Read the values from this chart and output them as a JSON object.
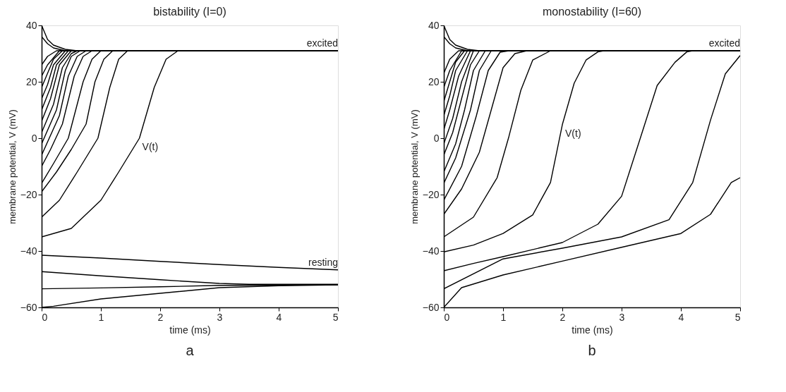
{
  "chart_data": [
    {
      "type": "line",
      "title": "bistability (I=0)",
      "xlabel": "time (ms)",
      "ylabel": "membrane potential, V (mV)",
      "xlim": [
        0,
        5
      ],
      "ylim": [
        -60,
        40
      ],
      "xticks": [
        0,
        1,
        2,
        3,
        4,
        5
      ],
      "yticks": [
        -60,
        -40,
        -20,
        0,
        20,
        40
      ],
      "grid": false,
      "line_style": "solid",
      "annotations": [
        {
          "text": "excited",
          "x": 5,
          "y": 31
        },
        {
          "text": "resting",
          "x": 5,
          "y": -46.7
        },
        {
          "text": "V(t)",
          "x": 1.65,
          "y": 0
        },
        "a"
      ],
      "series": [
        {
          "color": "#000000",
          "x": [
            0,
            0.1,
            0.2,
            0.4,
            0.6,
            5
          ],
          "values": [
            40,
            35,
            33,
            31.5,
            31,
            31
          ]
        },
        {
          "color": "#000000",
          "x": [
            0,
            0.1,
            0.2,
            0.4,
            5
          ],
          "values": [
            36,
            33.5,
            32,
            31,
            31
          ]
        },
        {
          "color": "#000000",
          "x": [
            0,
            0.1,
            0.25,
            5
          ],
          "values": [
            26,
            29,
            31,
            31
          ]
        },
        {
          "color": "#000000",
          "x": [
            0,
            0.1,
            0.3,
            5
          ],
          "values": [
            22,
            26,
            31,
            31
          ]
        },
        {
          "color": "#000000",
          "x": [
            0,
            0.1,
            0.2,
            0.35,
            5
          ],
          "values": [
            18,
            23,
            28,
            31,
            31
          ]
        },
        {
          "color": "#000000",
          "x": [
            0,
            0.1,
            0.2,
            0.4,
            5
          ],
          "values": [
            14,
            19,
            26,
            31,
            31
          ]
        },
        {
          "color": "#000000",
          "x": [
            0,
            0.15,
            0.25,
            0.45,
            5
          ],
          "values": [
            10,
            18,
            26,
            31,
            31
          ]
        },
        {
          "color": "#000000",
          "x": [
            0,
            0.15,
            0.3,
            0.5,
            5
          ],
          "values": [
            6,
            14,
            26,
            31,
            31
          ]
        },
        {
          "color": "#000000",
          "x": [
            0,
            0.2,
            0.35,
            0.5,
            0.6,
            5
          ],
          "values": [
            2,
            12,
            25,
            30,
            31,
            31
          ]
        },
        {
          "color": "#000000",
          "x": [
            0,
            0.25,
            0.4,
            0.5,
            0.65,
            5
          ],
          "values": [
            -2,
            10,
            24,
            29,
            31,
            31
          ]
        },
        {
          "color": "#000000",
          "x": [
            0,
            0.3,
            0.45,
            0.6,
            0.75,
            5
          ],
          "values": [
            -6,
            8,
            22,
            29,
            31,
            31
          ]
        },
        {
          "color": "#000000",
          "x": [
            0,
            0.15,
            0.35,
            0.55,
            0.7,
            0.85,
            5
          ],
          "values": [
            -10,
            -4,
            5,
            22,
            29,
            31,
            31
          ]
        },
        {
          "color": "#000000",
          "x": [
            0,
            0.2,
            0.45,
            0.7,
            0.85,
            1.0,
            5
          ],
          "values": [
            -16,
            -9,
            0,
            20,
            28,
            31,
            31
          ]
        },
        {
          "color": "#000000",
          "x": [
            0,
            0.25,
            0.5,
            0.75,
            0.9,
            1.05,
            1.2,
            5
          ],
          "values": [
            -19,
            -12,
            -4,
            5,
            20,
            28,
            31,
            31
          ]
        },
        {
          "color": "#000000",
          "x": [
            0,
            0.3,
            0.6,
            0.95,
            1.15,
            1.3,
            1.45,
            5
          ],
          "values": [
            -28,
            -22,
            -12,
            0,
            18,
            28,
            31,
            31
          ]
        },
        {
          "color": "#000000",
          "x": [
            0,
            0.5,
            1.0,
            1.3,
            1.65,
            1.9,
            2.1,
            2.3,
            5
          ],
          "values": [
            -35,
            -32,
            -22,
            -12,
            0,
            18,
            28,
            31,
            31
          ]
        },
        {
          "color": "#000000",
          "x": [
            0,
            1,
            2,
            3,
            4,
            5
          ],
          "values": [
            -41.5,
            -42.5,
            -43.7,
            -44.8,
            -45.8,
            -46.7
          ]
        },
        {
          "color": "#000000",
          "x": [
            0,
            1,
            2,
            3,
            3.5,
            5
          ],
          "values": [
            -47.3,
            -48.8,
            -50.2,
            -51.5,
            -51.8,
            -51.8
          ]
        },
        {
          "color": "#000000",
          "x": [
            0,
            1,
            2,
            3,
            5
          ],
          "values": [
            -53.4,
            -53.1,
            -52.7,
            -52.2,
            -52
          ]
        },
        {
          "color": "#000000",
          "x": [
            0,
            0.2,
            1,
            2,
            3,
            4,
            5
          ],
          "values": [
            -60,
            -59.6,
            -57,
            -55,
            -53,
            -52.3,
            -52
          ]
        }
      ]
    },
    {
      "type": "line",
      "title": "monostability (I=60)",
      "xlabel": "time (ms)",
      "ylabel": "membrane potential, V (mV)",
      "xlim": [
        0,
        5
      ],
      "ylim": [
        -60,
        40
      ],
      "xticks": [
        0,
        1,
        2,
        3,
        4,
        5
      ],
      "yticks": [
        -60,
        -40,
        -20,
        0,
        20,
        40
      ],
      "grid": false,
      "line_style": "solid",
      "annotations": [
        {
          "text": "excited",
          "x": 5,
          "y": 31
        },
        {
          "text": "V(t)",
          "x": 2,
          "y": 4.8
        },
        "b"
      ],
      "series": [
        {
          "color": "#000000",
          "x": [
            0,
            0.1,
            0.2,
            0.4,
            0.6,
            5
          ],
          "values": [
            40,
            35,
            33,
            31.5,
            31,
            31
          ]
        },
        {
          "color": "#000000",
          "x": [
            0,
            0.1,
            0.2,
            0.4,
            5
          ],
          "values": [
            36,
            33.5,
            32,
            31,
            31
          ]
        },
        {
          "color": "#000000",
          "x": [
            0,
            0.1,
            0.25,
            5
          ],
          "values": [
            23,
            28,
            31,
            31
          ]
        },
        {
          "color": "#000000",
          "x": [
            0,
            0.1,
            0.3,
            5
          ],
          "values": [
            18,
            24,
            31,
            31
          ]
        },
        {
          "color": "#000000",
          "x": [
            0,
            0.1,
            0.2,
            0.35,
            5
          ],
          "values": [
            13,
            20,
            27,
            31,
            31
          ]
        },
        {
          "color": "#000000",
          "x": [
            0,
            0.1,
            0.2,
            0.4,
            5
          ],
          "values": [
            8,
            15,
            24,
            31,
            31
          ]
        },
        {
          "color": "#000000",
          "x": [
            0,
            0.1,
            0.25,
            0.45,
            5
          ],
          "values": [
            3,
            10,
            22,
            31,
            31
          ]
        },
        {
          "color": "#000000",
          "x": [
            0,
            0.15,
            0.3,
            0.5,
            5
          ],
          "values": [
            -2,
            7,
            20,
            31,
            31
          ]
        },
        {
          "color": "#000000",
          "x": [
            0,
            0.15,
            0.3,
            0.45,
            0.6,
            5
          ],
          "values": [
            -6,
            2,
            14,
            26,
            31,
            31
          ]
        },
        {
          "color": "#000000",
          "x": [
            0,
            0.2,
            0.35,
            0.5,
            0.7,
            5
          ],
          "values": [
            -12,
            -2,
            10,
            24,
            31,
            31
          ]
        },
        {
          "color": "#000000",
          "x": [
            0,
            0.2,
            0.45,
            0.6,
            0.8,
            5
          ],
          "values": [
            -16,
            -7,
            10,
            24,
            31,
            31
          ]
        },
        {
          "color": "#000000",
          "x": [
            0,
            0.3,
            0.55,
            0.75,
            0.95,
            1.1,
            5
          ],
          "values": [
            -22,
            -10,
            8,
            24,
            30.5,
            31,
            31
          ]
        },
        {
          "color": "#000000",
          "x": [
            0,
            0.3,
            0.6,
            0.8,
            1.0,
            1.2,
            1.4,
            5
          ],
          "values": [
            -27,
            -18,
            -5,
            10,
            25,
            30,
            31,
            31
          ]
        },
        {
          "color": "#000000",
          "x": [
            0,
            0.5,
            0.9,
            1.1,
            1.3,
            1.5,
            1.8,
            5
          ],
          "values": [
            -35,
            -28,
            -14,
            0.7,
            17,
            27.7,
            31,
            31
          ]
        },
        {
          "color": "#000000",
          "x": [
            0,
            0.5,
            1,
            1.5,
            1.8,
            2,
            2.2,
            2.4,
            2.6,
            2.7,
            5
          ],
          "values": [
            -40.3,
            -37.9,
            -33.8,
            -27.2,
            -15.7,
            4.8,
            19.5,
            27.7,
            30.6,
            31,
            31
          ]
        },
        {
          "color": "#000000",
          "x": [
            0,
            0.5,
            1,
            2,
            2.6,
            3,
            3.3,
            3.6,
            3.9,
            4.1,
            4.2,
            5
          ],
          "values": [
            -47,
            -44.4,
            -42,
            -37,
            -30.5,
            -20.6,
            -1,
            18.7,
            26.9,
            30.6,
            31,
            31
          ]
        },
        {
          "color": "#000000",
          "x": [
            0,
            1,
            2,
            3,
            3.8,
            4.2,
            4.5,
            4.75,
            5
          ],
          "values": [
            -53.4,
            -42.8,
            -39,
            -35,
            -28.9,
            -15.7,
            6.4,
            22.8,
            29.3
          ]
        },
        {
          "color": "#000000",
          "x": [
            0,
            0.3,
            1,
            2,
            3,
            4,
            4.5,
            4.85,
            5
          ],
          "values": [
            -60,
            -53,
            -48.5,
            -43.6,
            -38.7,
            -33.8,
            -27,
            -15.7,
            -14
          ]
        }
      ]
    }
  ]
}
